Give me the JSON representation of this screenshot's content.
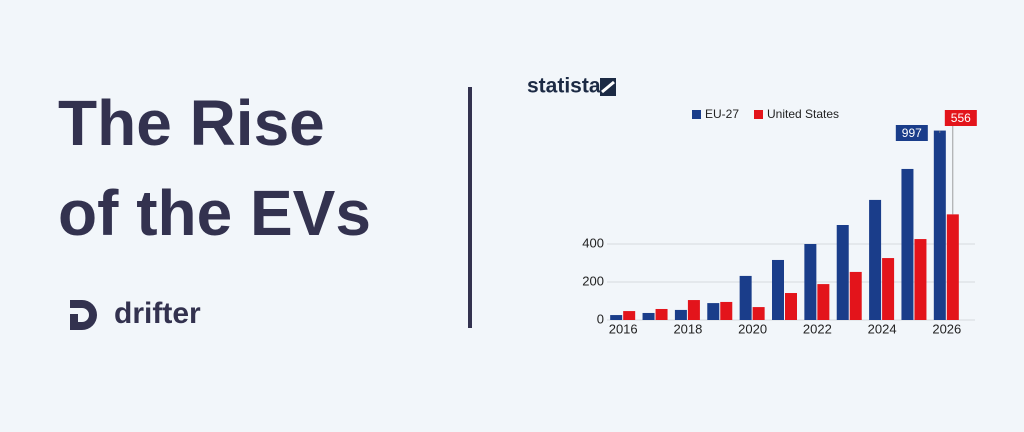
{
  "banner": {
    "title_lines": [
      "The Rise",
      "of the EVs"
    ],
    "brand": "drifter",
    "source": "statista"
  },
  "chart_data": {
    "type": "bar",
    "categories": [
      "2016",
      null,
      "2018",
      null,
      "2020",
      null,
      "2022",
      null,
      "2024",
      null,
      "2026"
    ],
    "series": [
      {
        "name": "EU-27",
        "color": "#1a3d8a",
        "values": [
          26,
          37,
          53,
          89,
          232,
          316,
          400,
          500,
          632,
          795,
          997
        ]
      },
      {
        "name": "United States",
        "color": "#e3141b",
        "values": [
          47,
          58,
          105,
          95,
          68,
          142,
          189,
          253,
          326,
          426,
          556
        ]
      }
    ],
    "ylim": [
      0,
      1000
    ],
    "yticks": [
      0,
      200,
      400
    ],
    "grid": true
  }
}
